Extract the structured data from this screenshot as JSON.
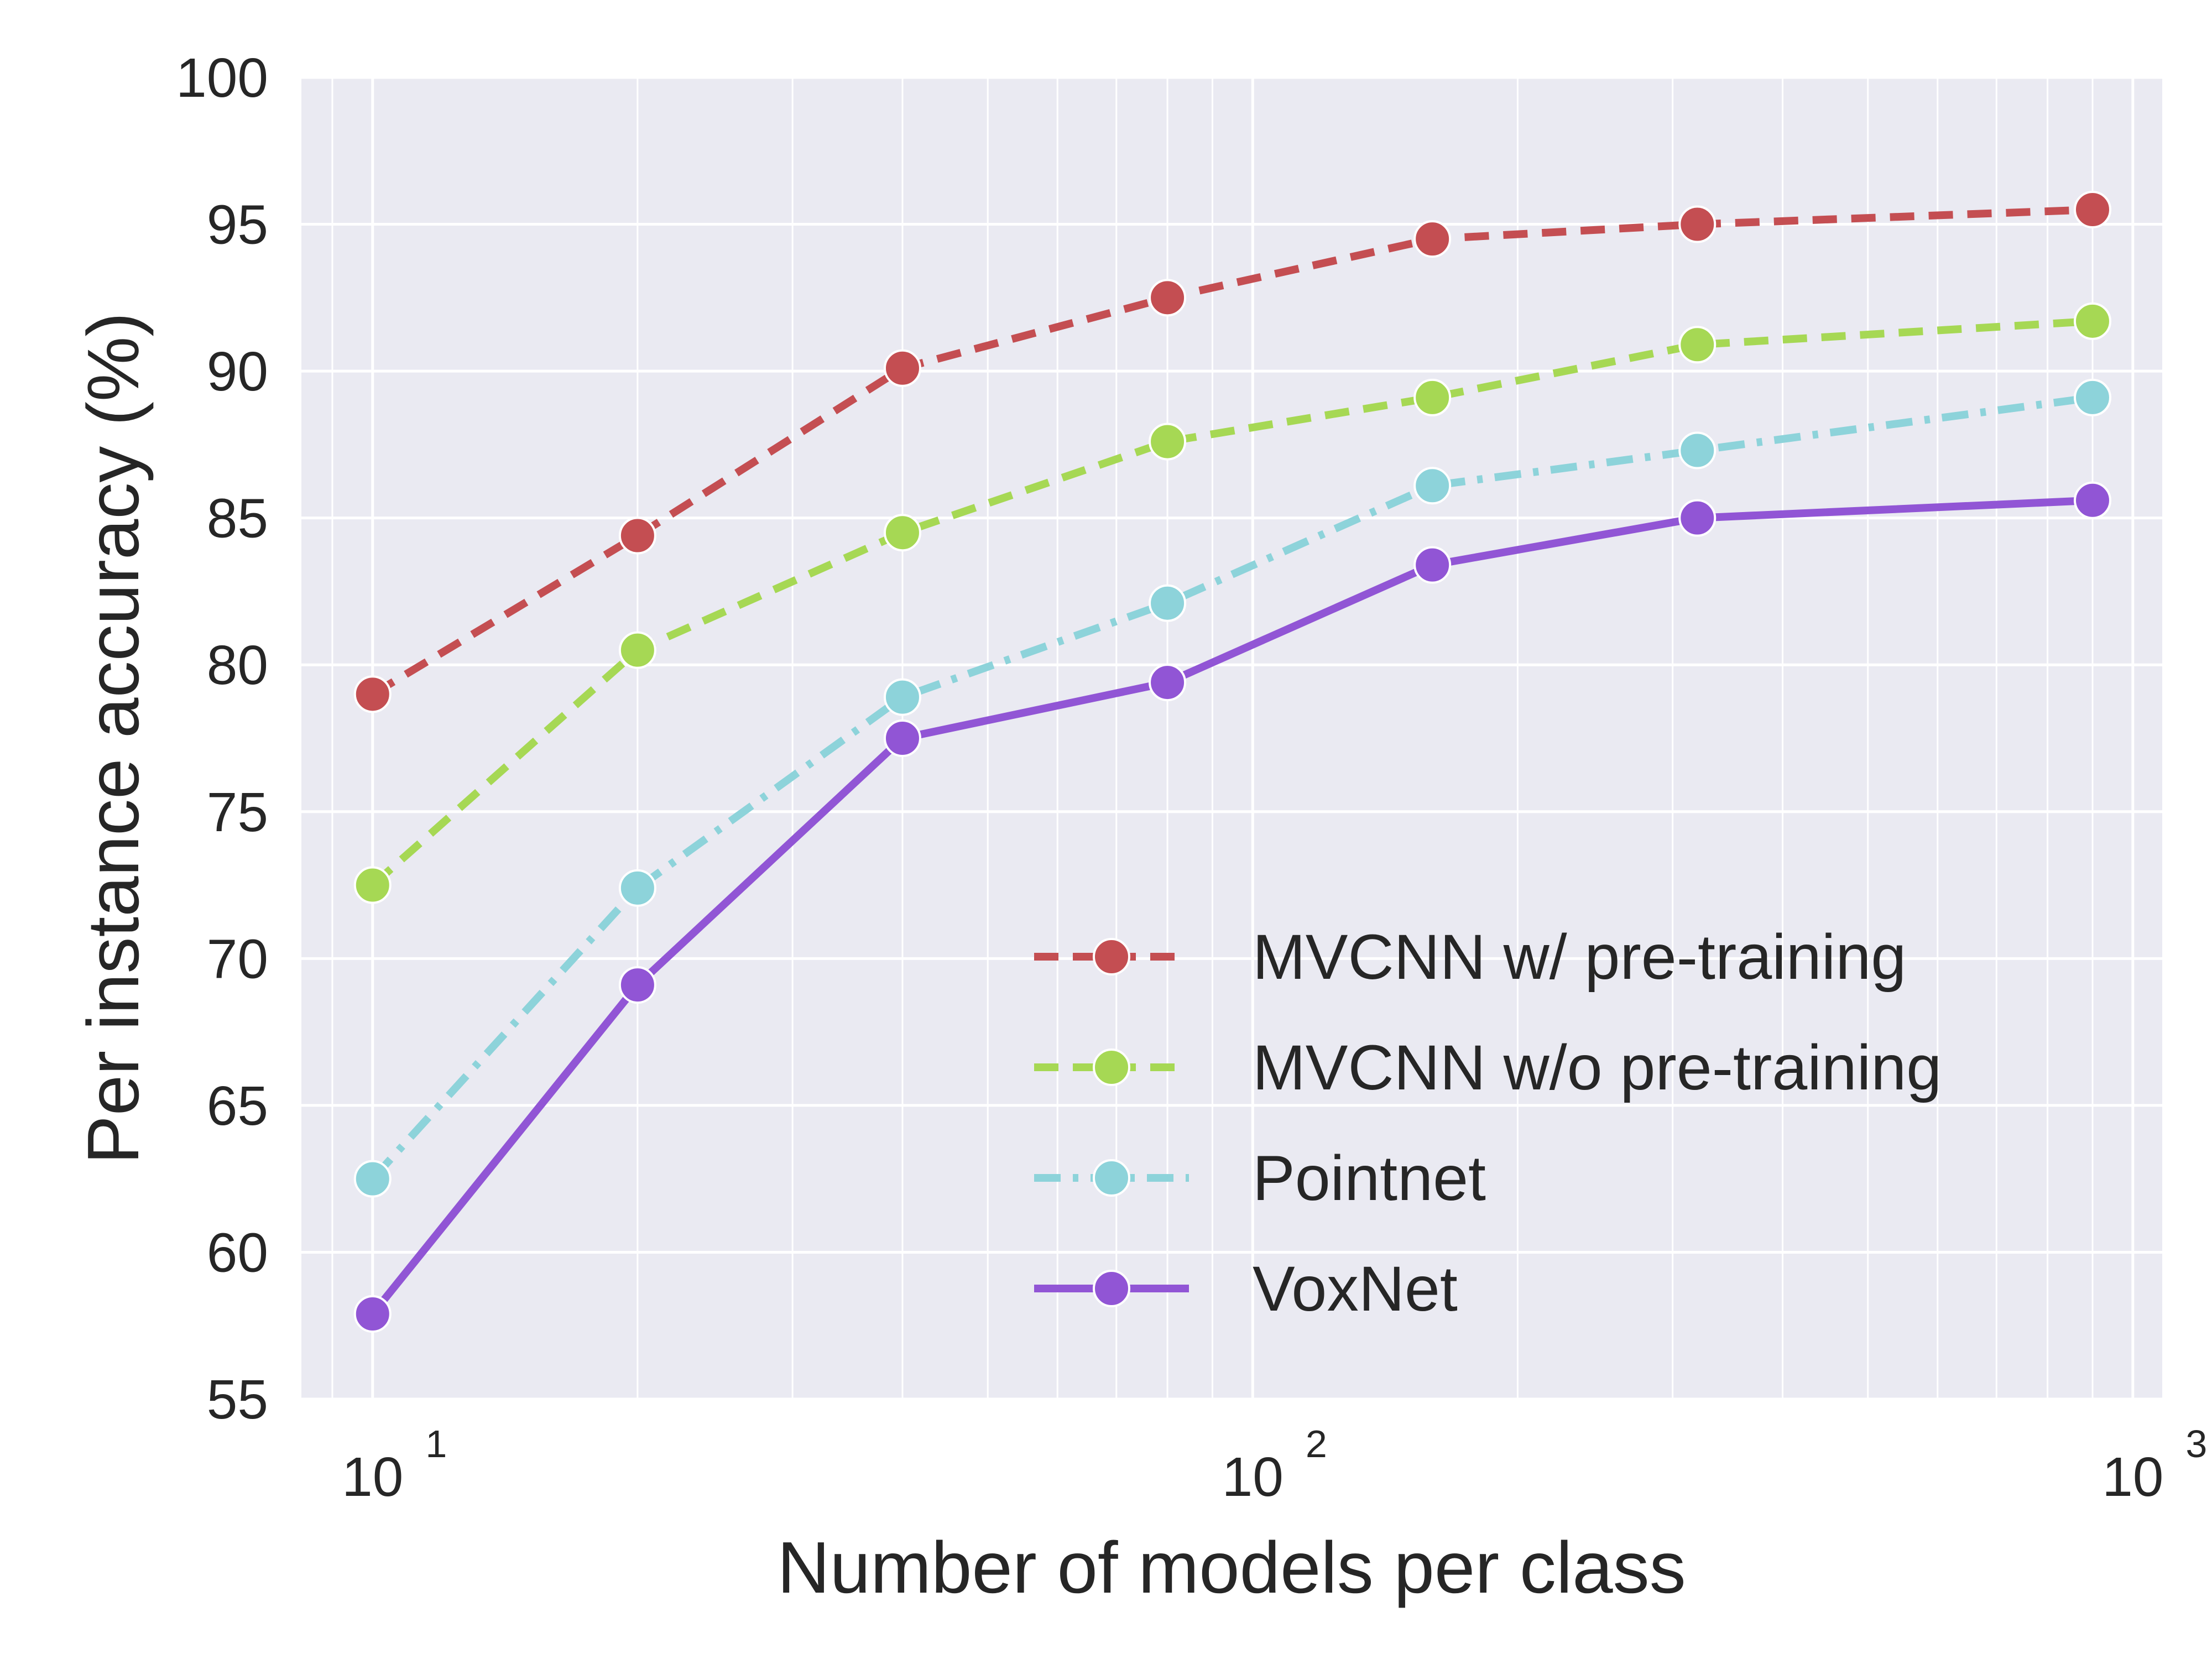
{
  "chart_data": {
    "type": "line",
    "title": "",
    "xlabel": "Number of models per class",
    "ylabel": "Per instance accuracy (%)",
    "xscale": "log",
    "xlim": [
      8.3,
      1080
    ],
    "ylim": [
      55,
      100
    ],
    "x": [
      10,
      20,
      40,
      80,
      160,
      320,
      900
    ],
    "xticks": [
      {
        "value": 10,
        "base": "10",
        "exp": "1"
      },
      {
        "value": 100,
        "base": "10",
        "exp": "2"
      },
      {
        "value": 1000,
        "base": "10",
        "exp": "3"
      }
    ],
    "yticks": [
      55,
      60,
      65,
      70,
      75,
      80,
      85,
      90,
      95,
      100
    ],
    "grid": true,
    "background": "#eaeaf2",
    "legend_position": "lower right",
    "series": [
      {
        "name": "MVCNN w/ pre-training",
        "color": "#c44e52",
        "linestyle": "dashed",
        "values": [
          79.0,
          84.4,
          90.1,
          92.5,
          94.5,
          95.0,
          95.5
        ]
      },
      {
        "name": "MVCNN w/o pre-training",
        "color": "#a6d854",
        "linestyle": "dashed",
        "values": [
          72.5,
          80.5,
          84.5,
          87.6,
          89.1,
          90.9,
          91.7
        ]
      },
      {
        "name": "Pointnet",
        "color": "#8dd3da",
        "linestyle": "dashdot",
        "values": [
          62.5,
          72.4,
          78.9,
          82.1,
          86.1,
          87.3,
          89.1
        ]
      },
      {
        "name": "VoxNet",
        "color": "#9155d5",
        "linestyle": "solid",
        "values": [
          57.9,
          69.1,
          77.5,
          79.4,
          83.4,
          85.0,
          85.6
        ]
      }
    ]
  }
}
